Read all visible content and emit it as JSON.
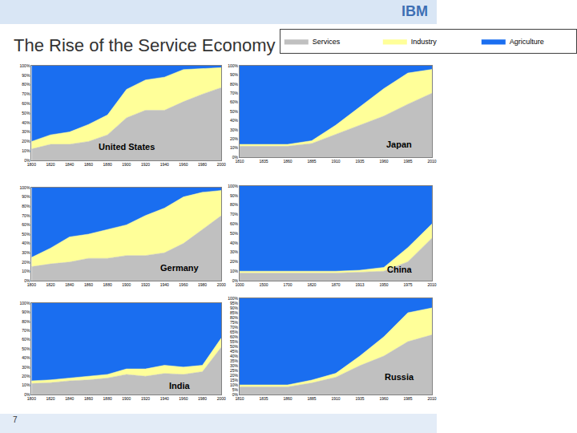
{
  "title": "The Rise of the Service Economy",
  "page_number": "7",
  "logo": "IBM",
  "chart_data": [
    {
      "type": "area",
      "title": "United States",
      "stacked": true,
      "grid": false,
      "legend": "top-right",
      "categories": [
        "1800",
        "1820",
        "1840",
        "1860",
        "1880",
        "1900",
        "1920",
        "1940",
        "1960",
        "1980",
        "2000"
      ],
      "series": [
        {
          "name": "Services",
          "color": "#c0c0c0",
          "values": [
            12,
            17,
            17,
            20,
            27,
            45,
            53,
            53,
            62,
            70,
            77
          ]
        },
        {
          "name": "Industry",
          "color": "#ffff99",
          "values": [
            8,
            10,
            13,
            18,
            21,
            30,
            32,
            35,
            34,
            27,
            21
          ]
        },
        {
          "name": "Agriculture",
          "color": "#1a6ef0",
          "values": [
            80,
            73,
            70,
            62,
            52,
            25,
            15,
            12,
            4,
            3,
            2
          ]
        }
      ],
      "ylim": [
        0,
        100
      ],
      "yticks": [
        {
          "value": 0,
          "label": "0%"
        },
        {
          "value": 10,
          "label": "10%"
        },
        {
          "value": 20,
          "label": "20%"
        },
        {
          "value": 30,
          "label": "30%"
        },
        {
          "value": 40,
          "label": "40%"
        },
        {
          "value": 50,
          "label": "50%"
        },
        {
          "value": 60,
          "label": "60%"
        },
        {
          "value": 70,
          "label": "70%"
        },
        {
          "value": 80,
          "label": "80%"
        },
        {
          "value": 90,
          "label": "90%"
        },
        {
          "value": 100,
          "label": "100%"
        }
      ]
    },
    {
      "type": "area",
      "title": "Japan",
      "stacked": true,
      "grid": false,
      "categories": [
        "1810",
        "1835",
        "1860",
        "1885",
        "1910",
        "1935",
        "1960",
        "1985",
        "2010"
      ],
      "series": [
        {
          "name": "Services",
          "color": "#c0c0c0",
          "values": [
            12,
            12,
            12,
            15,
            25,
            35,
            45,
            58,
            70
          ]
        },
        {
          "name": "Industry",
          "color": "#ffff99",
          "values": [
            2,
            2,
            2,
            3,
            10,
            20,
            30,
            34,
            26
          ]
        },
        {
          "name": "Agriculture",
          "color": "#1a6ef0",
          "values": [
            86,
            86,
            86,
            82,
            65,
            45,
            25,
            8,
            4
          ]
        }
      ],
      "ylim": [
        0,
        100
      ],
      "yticks": [
        {
          "value": 0,
          "label": "0%"
        },
        {
          "value": 10,
          "label": "10%"
        },
        {
          "value": 20,
          "label": "20%"
        },
        {
          "value": 30,
          "label": "30%"
        },
        {
          "value": 40,
          "label": "40%"
        },
        {
          "value": 50,
          "label": "50%"
        },
        {
          "value": 60,
          "label": "60%"
        },
        {
          "value": 70,
          "label": "70%"
        },
        {
          "value": 80,
          "label": "80%"
        },
        {
          "value": 90,
          "label": "90%"
        },
        {
          "value": 100,
          "label": "100%"
        }
      ]
    },
    {
      "type": "area",
      "title": "Germany",
      "stacked": true,
      "grid": false,
      "categories": [
        "1800",
        "1820",
        "1840",
        "1860",
        "1880",
        "1900",
        "1920",
        "1940",
        "1960",
        "1980",
        "2000"
      ],
      "series": [
        {
          "name": "Services",
          "color": "#c0c0c0",
          "values": [
            15,
            18,
            20,
            24,
            24,
            27,
            27,
            30,
            40,
            55,
            70
          ]
        },
        {
          "name": "Industry",
          "color": "#ffff99",
          "values": [
            10,
            17,
            27,
            26,
            31,
            33,
            43,
            48,
            50,
            40,
            27
          ]
        },
        {
          "name": "Agriculture",
          "color": "#1a6ef0",
          "values": [
            75,
            65,
            53,
            50,
            45,
            40,
            30,
            22,
            10,
            5,
            3
          ]
        }
      ],
      "ylim": [
        0,
        100
      ],
      "yticks": [
        {
          "value": 0,
          "label": "0%"
        },
        {
          "value": 10,
          "label": "10%"
        },
        {
          "value": 20,
          "label": "20%"
        },
        {
          "value": 30,
          "label": "30%"
        },
        {
          "value": 40,
          "label": "40%"
        },
        {
          "value": 50,
          "label": "50%"
        },
        {
          "value": 60,
          "label": "60%"
        },
        {
          "value": 70,
          "label": "70%"
        },
        {
          "value": 80,
          "label": "80%"
        },
        {
          "value": 90,
          "label": "90%"
        },
        {
          "value": 100,
          "label": "100%"
        }
      ]
    },
    {
      "type": "area",
      "title": "China",
      "stacked": true,
      "grid": false,
      "categories": [
        "1000",
        "1500",
        "1700",
        "1820",
        "1870",
        "1913",
        "1950",
        "1975",
        "2010"
      ],
      "series": [
        {
          "name": "Services",
          "color": "#c0c0c0",
          "values": [
            8,
            8,
            8,
            8,
            8,
            9,
            10,
            20,
            45
          ]
        },
        {
          "name": "Industry",
          "color": "#ffff99",
          "values": [
            2,
            2,
            2,
            2,
            2,
            2,
            4,
            15,
            15
          ]
        },
        {
          "name": "Agriculture",
          "color": "#1a6ef0",
          "values": [
            90,
            90,
            90,
            90,
            90,
            89,
            86,
            65,
            40
          ]
        }
      ],
      "ylim": [
        0,
        100
      ],
      "yticks": [
        {
          "value": 0,
          "label": "0%"
        },
        {
          "value": 10,
          "label": "10%"
        },
        {
          "value": 20,
          "label": "20%"
        },
        {
          "value": 30,
          "label": "30%"
        },
        {
          "value": 40,
          "label": "40%"
        },
        {
          "value": 50,
          "label": "50%"
        },
        {
          "value": 60,
          "label": "60%"
        },
        {
          "value": 70,
          "label": "70%"
        },
        {
          "value": 80,
          "label": "80%"
        },
        {
          "value": 90,
          "label": "90%"
        },
        {
          "value": 100,
          "label": "100%"
        }
      ]
    },
    {
      "type": "area",
      "title": "India",
      "stacked": true,
      "grid": false,
      "categories": [
        "1800",
        "1820",
        "1840",
        "1860",
        "1880",
        "1900",
        "1920",
        "1940",
        "1960",
        "1980",
        "2000"
      ],
      "series": [
        {
          "name": "Services",
          "color": "#c0c0c0",
          "values": [
            12,
            13,
            15,
            16,
            18,
            22,
            20,
            23,
            22,
            25,
            52
          ]
        },
        {
          "name": "Industry",
          "color": "#ffff99",
          "values": [
            3,
            3,
            3,
            4,
            4,
            6,
            8,
            9,
            8,
            7,
            10
          ]
        },
        {
          "name": "Agriculture",
          "color": "#1a6ef0",
          "values": [
            85,
            84,
            82,
            80,
            78,
            72,
            72,
            68,
            70,
            68,
            38
          ]
        }
      ],
      "ylim": [
        0,
        100
      ],
      "yticks": [
        {
          "value": 0,
          "label": "0%"
        },
        {
          "value": 10,
          "label": "10%"
        },
        {
          "value": 20,
          "label": "20%"
        },
        {
          "value": 30,
          "label": "30%"
        },
        {
          "value": 40,
          "label": "40%"
        },
        {
          "value": 50,
          "label": "50%"
        },
        {
          "value": 60,
          "label": "60%"
        },
        {
          "value": 70,
          "label": "70%"
        },
        {
          "value": 80,
          "label": "80%"
        },
        {
          "value": 90,
          "label": "90%"
        },
        {
          "value": 100,
          "label": "100%"
        }
      ]
    },
    {
      "type": "area",
      "title": "Russia",
      "stacked": true,
      "grid": false,
      "categories": [
        "1810",
        "1835",
        "1860",
        "1885",
        "1910",
        "1935",
        "1960",
        "1985",
        "2010"
      ],
      "series": [
        {
          "name": "Services",
          "color": "#c0c0c0",
          "values": [
            8,
            8,
            8,
            12,
            18,
            30,
            40,
            55,
            62
          ]
        },
        {
          "name": "Industry",
          "color": "#ffff99",
          "values": [
            2,
            2,
            2,
            3,
            4,
            10,
            20,
            30,
            28
          ]
        },
        {
          "name": "Agriculture",
          "color": "#1a6ef0",
          "values": [
            90,
            90,
            90,
            85,
            78,
            60,
            40,
            15,
            10
          ]
        }
      ],
      "ylim": [
        0,
        100
      ],
      "yticks": [
        {
          "value": 0,
          "label": "0%"
        },
        {
          "value": 5,
          "label": "5%"
        },
        {
          "value": 10,
          "label": "10%"
        },
        {
          "value": 15,
          "label": "15%"
        },
        {
          "value": 20,
          "label": "20%"
        },
        {
          "value": 25,
          "label": "25%"
        },
        {
          "value": 30,
          "label": "30%"
        },
        {
          "value": 35,
          "label": "35%"
        },
        {
          "value": 40,
          "label": "40%"
        },
        {
          "value": 45,
          "label": "45%"
        },
        {
          "value": 50,
          "label": "50%"
        },
        {
          "value": 55,
          "label": "55%"
        },
        {
          "value": 60,
          "label": "60%"
        },
        {
          "value": 65,
          "label": "65%"
        },
        {
          "value": 70,
          "label": "70%"
        },
        {
          "value": 75,
          "label": "75%"
        },
        {
          "value": 80,
          "label": "80%"
        },
        {
          "value": 85,
          "label": "85%"
        },
        {
          "value": 90,
          "label": "90%"
        },
        {
          "value": 95,
          "label": "95%"
        },
        {
          "value": 100,
          "label": "100%"
        }
      ]
    }
  ]
}
